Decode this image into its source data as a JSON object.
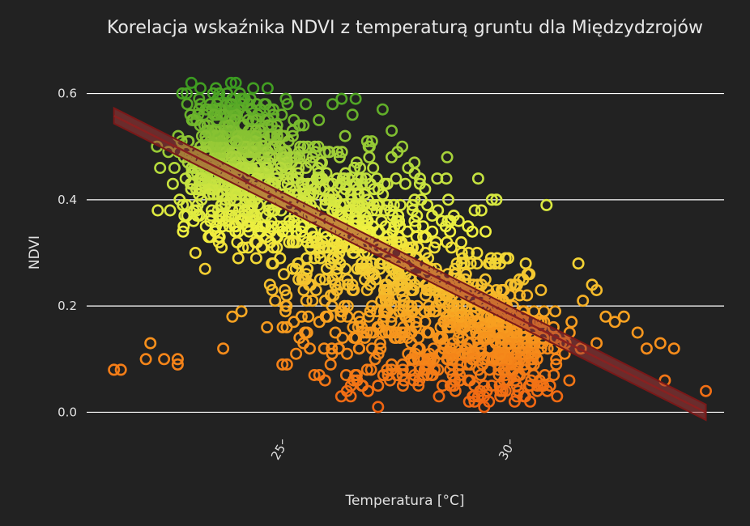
{
  "chart_data": {
    "type": "scatter",
    "title": "Korelacja wskaźnika NDVI z temperaturą gruntu dla Międzydzrojów",
    "xlabel": "Temperatura [°C]",
    "ylabel": "NDVI",
    "xlim": [
      20.7,
      34.7
    ],
    "ylim": [
      -0.045,
      0.645
    ],
    "xticks": [
      25,
      30
    ],
    "yticks": [
      0.0,
      0.2,
      0.4,
      0.6
    ],
    "ytick_labels": [
      "0.0",
      "0.2",
      "0.4",
      "0.6"
    ],
    "xtick_labels": [
      "25",
      "30"
    ],
    "grid": "horizontal",
    "marker": "open-circle",
    "colorscale": [
      "#f06010",
      "#f8a020",
      "#f0f040",
      "#c0e040",
      "#3a9a20"
    ],
    "colorscale_range": [
      0.0,
      0.62
    ],
    "trendline": {
      "x": [
        21.3,
        34.3
      ],
      "y": [
        0.558,
        0.0
      ],
      "band_halfwidth": 0.01,
      "color": "#a63636"
    },
    "outlier_points": [
      [
        21.3,
        0.08
      ],
      [
        21.45,
        0.08
      ],
      [
        22.0,
        0.1
      ],
      [
        22.1,
        0.13
      ],
      [
        22.4,
        0.1
      ],
      [
        22.7,
        0.1
      ],
      [
        22.7,
        0.09
      ],
      [
        23.7,
        0.12
      ],
      [
        23.9,
        0.18
      ],
      [
        24.1,
        0.19
      ],
      [
        23.3,
        0.27
      ],
      [
        23.6,
        0.33
      ],
      [
        25.0,
        0.09
      ],
      [
        25.1,
        0.09
      ],
      [
        25.3,
        0.11
      ],
      [
        25.6,
        0.12
      ],
      [
        25.7,
        0.07
      ],
      [
        26.4,
        0.07
      ],
      [
        26.5,
        0.03
      ],
      [
        27.1,
        0.01
      ],
      [
        27.1,
        0.05
      ],
      [
        28.8,
        0.04
      ],
      [
        29.1,
        0.02
      ],
      [
        29.3,
        0.03
      ],
      [
        30.1,
        0.02
      ],
      [
        31.3,
        0.06
      ],
      [
        32.5,
        0.18
      ],
      [
        32.8,
        0.15
      ],
      [
        33.0,
        0.12
      ],
      [
        33.3,
        0.13
      ],
      [
        33.6,
        0.12
      ],
      [
        33.4,
        0.06
      ],
      [
        34.3,
        0.04
      ],
      [
        31.5,
        0.28
      ],
      [
        31.8,
        0.24
      ],
      [
        31.9,
        0.23
      ],
      [
        31.6,
        0.21
      ],
      [
        32.1,
        0.18
      ],
      [
        32.3,
        0.17
      ],
      [
        31.9,
        0.13
      ],
      [
        30.8,
        0.39
      ],
      [
        29.3,
        0.44
      ],
      [
        29.6,
        0.4
      ],
      [
        29.7,
        0.4
      ],
      [
        27.2,
        0.57
      ],
      [
        27.4,
        0.53
      ],
      [
        26.3,
        0.59
      ],
      [
        26.1,
        0.58
      ],
      [
        25.8,
        0.55
      ],
      [
        23.0,
        0.62
      ],
      [
        23.2,
        0.61
      ],
      [
        22.8,
        0.6
      ],
      [
        24.8,
        0.56
      ],
      [
        24.6,
        0.58
      ],
      [
        28.6,
        0.44
      ],
      [
        28.4,
        0.44
      ],
      [
        27.9,
        0.47
      ],
      [
        31.2,
        0.11
      ],
      [
        31.0,
        0.14
      ],
      [
        30.3,
        0.03
      ],
      [
        29.9,
        0.04
      ],
      [
        30.6,
        0.05
      ]
    ],
    "clusters": [
      {
        "cx": 23.7,
        "cy": 0.44,
        "sx": 0.55,
        "sy": 0.06,
        "n": 260
      },
      {
        "cx": 24.4,
        "cy": 0.5,
        "sx": 0.45,
        "sy": 0.05,
        "n": 120
      },
      {
        "cx": 23.6,
        "cy": 0.55,
        "sx": 0.35,
        "sy": 0.035,
        "n": 70
      },
      {
        "cx": 25.3,
        "cy": 0.4,
        "sx": 0.65,
        "sy": 0.07,
        "n": 170
      },
      {
        "cx": 26.5,
        "cy": 0.36,
        "sx": 0.8,
        "sy": 0.08,
        "n": 200
      },
      {
        "cx": 27.8,
        "cy": 0.28,
        "sx": 0.85,
        "sy": 0.08,
        "n": 190
      },
      {
        "cx": 29.3,
        "cy": 0.17,
        "sx": 0.75,
        "sy": 0.07,
        "n": 230
      },
      {
        "cx": 30.1,
        "cy": 0.12,
        "sx": 0.55,
        "sy": 0.05,
        "n": 140
      },
      {
        "cx": 27.0,
        "cy": 0.18,
        "sx": 0.8,
        "sy": 0.07,
        "n": 100
      },
      {
        "cx": 28.3,
        "cy": 0.09,
        "sx": 0.8,
        "sy": 0.04,
        "n": 60
      },
      {
        "cx": 25.5,
        "cy": 0.22,
        "sx": 0.5,
        "sy": 0.05,
        "n": 35
      }
    ]
  }
}
